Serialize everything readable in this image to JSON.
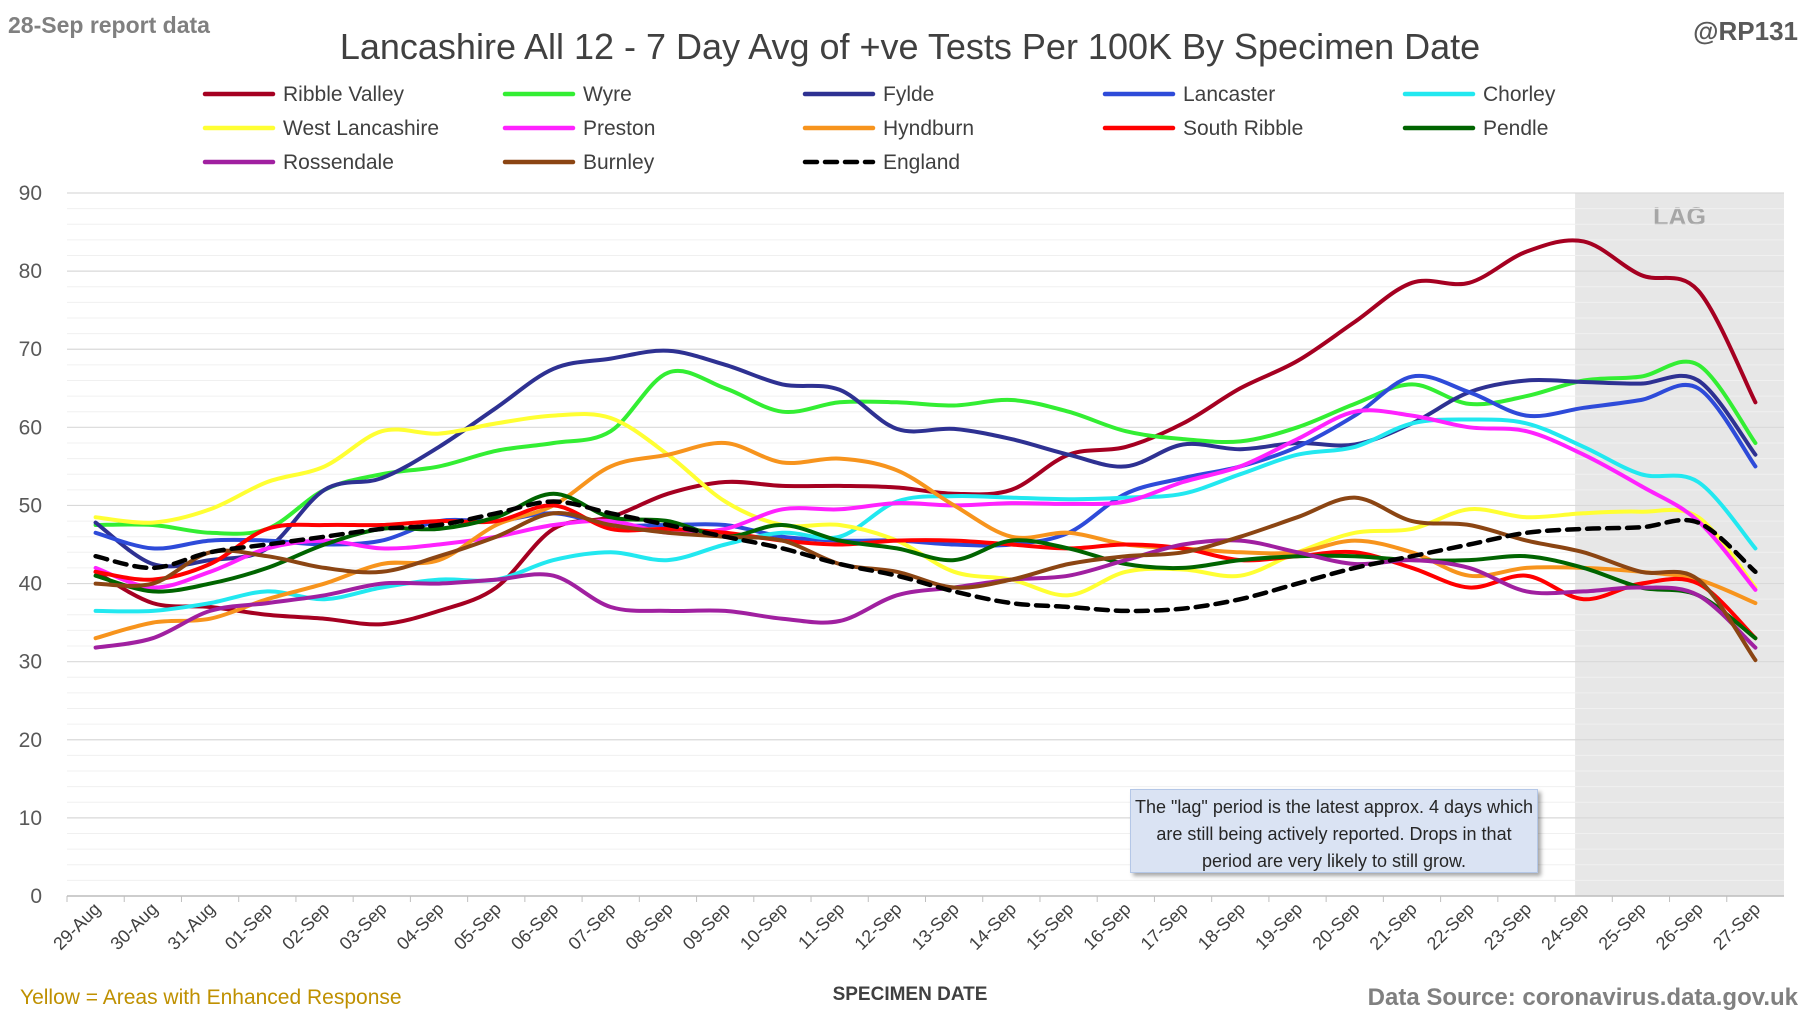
{
  "report_note": "28-Sep report data",
  "handle": "@RP131",
  "footer_left": "Yellow = Areas with Enhanced Response",
  "footer_right": "Data Source: coronavirus.data.gov.uk",
  "note_box": "The \"lag\" period is the latest approx. 4 days which are still being actively reported.  Drops in that period are very likely to still grow.",
  "chart_data": {
    "type": "line",
    "title": "Lancashire All 12 - 7 Day Avg of +ve Tests Per 100K By Specimen Date",
    "xlabel": "SPECIMEN DATE",
    "ylabel": "",
    "ylim": [
      0,
      90
    ],
    "yticks": [
      0,
      10,
      20,
      30,
      40,
      50,
      60,
      70,
      80,
      90
    ],
    "grid": true,
    "legend_position": "top",
    "lag_label": "LAG",
    "lag_start": "24-Sep",
    "lag_end": "27-Sep",
    "lag_color": "#e7e7e7",
    "categories": [
      "29-Aug",
      "30-Aug",
      "31-Aug",
      "01-Sep",
      "02-Sep",
      "03-Sep",
      "04-Sep",
      "05-Sep",
      "06-Sep",
      "07-Sep",
      "08-Sep",
      "09-Sep",
      "10-Sep",
      "11-Sep",
      "12-Sep",
      "13-Sep",
      "14-Sep",
      "15-Sep",
      "16-Sep",
      "17-Sep",
      "18-Sep",
      "19-Sep",
      "20-Sep",
      "21-Sep",
      "22-Sep",
      "23-Sep",
      "24-Sep",
      "25-Sep",
      "26-Sep",
      "27-Sep"
    ],
    "series": [
      {
        "name": "Ribble Valley",
        "color": "#a50021",
        "dashed": false,
        "values": [
          41.5,
          37.5,
          37.0,
          36.0,
          35.5,
          34.8,
          36.5,
          39.5,
          47.0,
          48.5,
          51.5,
          53.0,
          52.5,
          52.5,
          52.3,
          51.5,
          52.0,
          56.5,
          57.5,
          60.5,
          65.0,
          68.5,
          73.5,
          78.5,
          78.5,
          82.5,
          83.8,
          79.5,
          77.5,
          63.2
        ]
      },
      {
        "name": "Wyre",
        "color": "#33ee33",
        "dashed": false,
        "values": [
          47.5,
          47.5,
          46.5,
          47.0,
          52.0,
          54.0,
          55.0,
          57.0,
          58.0,
          59.5,
          67.0,
          65.0,
          62.0,
          63.2,
          63.2,
          62.8,
          63.5,
          62.0,
          59.5,
          58.5,
          58.2,
          60.0,
          63.0,
          65.5,
          63.0,
          64.0,
          66.0,
          66.5,
          68.0,
          58.0
        ]
      },
      {
        "name": "Fylde",
        "color": "#2e3192",
        "dashed": false,
        "values": [
          47.8,
          42.5,
          43.0,
          44.5,
          52.0,
          53.5,
          57.5,
          62.5,
          67.5,
          68.8,
          69.8,
          68.0,
          65.5,
          64.8,
          59.8,
          59.8,
          58.5,
          56.5,
          55.0,
          57.8,
          57.2,
          58.0,
          57.8,
          60.5,
          64.5,
          66.0,
          65.8,
          65.6,
          66.0,
          56.5
        ]
      },
      {
        "name": "Lancaster",
        "color": "#2e4bd9",
        "dashed": false,
        "values": [
          46.5,
          44.5,
          45.5,
          45.5,
          45.0,
          45.5,
          48.0,
          48.0,
          49.0,
          47.5,
          47.5,
          47.5,
          46.0,
          45.5,
          45.5,
          45.0,
          45.0,
          46.5,
          51.5,
          53.5,
          55.0,
          57.5,
          61.5,
          66.5,
          64.5,
          61.5,
          62.5,
          63.5,
          65.0,
          55.0
        ]
      },
      {
        "name": "Chorley",
        "color": "#22e8f0",
        "dashed": false,
        "values": [
          36.5,
          36.5,
          37.5,
          39.0,
          38.0,
          39.5,
          40.5,
          40.5,
          43.0,
          44.0,
          43.0,
          45.0,
          46.5,
          46.0,
          50.5,
          51.2,
          51.0,
          50.8,
          51.0,
          51.5,
          54.0,
          56.5,
          57.5,
          60.5,
          61.0,
          60.5,
          57.5,
          54.0,
          53.0,
          44.5
        ]
      },
      {
        "name": "West Lancashire",
        "color": "#ffff33",
        "dashed": false,
        "values": [
          48.5,
          47.8,
          49.5,
          53.0,
          55.0,
          59.5,
          59.2,
          60.5,
          61.5,
          61.2,
          56.5,
          50.5,
          47.5,
          47.5,
          45.5,
          41.5,
          40.5,
          38.5,
          41.5,
          41.8,
          41.0,
          44.0,
          46.5,
          47.0,
          49.5,
          48.5,
          49.0,
          49.2,
          48.5,
          39.5
        ]
      },
      {
        "name": "Preston",
        "color": "#ff22ff",
        "dashed": false,
        "values": [
          42.0,
          39.5,
          41.5,
          44.5,
          45.5,
          44.5,
          45.0,
          46.0,
          47.5,
          48.0,
          46.5,
          47.0,
          49.5,
          49.5,
          50.3,
          50.0,
          50.3,
          50.2,
          50.5,
          53.0,
          55.0,
          58.5,
          62.0,
          61.5,
          60.0,
          59.5,
          56.5,
          52.5,
          48.0,
          39.2
        ]
      },
      {
        "name": "Hyndburn",
        "color": "#f7941d",
        "dashed": false,
        "values": [
          33.0,
          35.0,
          35.5,
          38.0,
          40.0,
          42.5,
          43.0,
          47.5,
          50.0,
          55.0,
          56.5,
          58.0,
          55.5,
          56.0,
          54.5,
          50.0,
          46.0,
          46.5,
          45.0,
          44.5,
          44.0,
          44.0,
          45.5,
          44.0,
          41.0,
          42.0,
          42.0,
          41.5,
          40.5,
          37.5
        ]
      },
      {
        "name": "South Ribble",
        "color": "#ff0000",
        "dashed": false,
        "values": [
          41.5,
          40.5,
          42.5,
          47.0,
          47.5,
          47.5,
          48.0,
          48.0,
          50.0,
          47.0,
          47.0,
          46.5,
          45.5,
          45.0,
          45.5,
          45.5,
          45.0,
          44.5,
          45.0,
          44.5,
          43.0,
          43.5,
          44.0,
          42.0,
          39.5,
          41.0,
          38.0,
          40.0,
          40.0,
          33.0
        ]
      },
      {
        "name": "Pendle",
        "color": "#006400",
        "dashed": false,
        "values": [
          41.0,
          39.0,
          40.0,
          42.0,
          45.0,
          47.0,
          47.0,
          48.5,
          51.5,
          48.5,
          48.0,
          46.0,
          47.5,
          45.5,
          44.5,
          43.0,
          45.5,
          44.5,
          42.5,
          42.0,
          43.0,
          43.5,
          43.5,
          43.0,
          43.0,
          43.5,
          42.0,
          39.5,
          38.5,
          33.0
        ]
      },
      {
        "name": "Rossendale",
        "color": "#a020a0",
        "dashed": false,
        "values": [
          31.8,
          33.0,
          36.5,
          37.5,
          38.5,
          40.0,
          40.0,
          40.5,
          41.0,
          37.0,
          36.5,
          36.5,
          35.5,
          35.2,
          38.5,
          39.5,
          40.5,
          41.0,
          43.0,
          45.0,
          45.5,
          44.0,
          42.5,
          43.0,
          42.0,
          39.0,
          39.0,
          39.5,
          38.5,
          31.8
        ]
      },
      {
        "name": "Burnley",
        "color": "#8b4513",
        "dashed": false,
        "values": [
          40.0,
          40.0,
          44.0,
          43.5,
          42.0,
          41.5,
          43.5,
          46.0,
          49.0,
          47.5,
          46.5,
          46.0,
          45.5,
          42.5,
          41.5,
          39.5,
          40.5,
          42.5,
          43.5,
          44.0,
          46.0,
          48.5,
          51.0,
          48.0,
          47.5,
          45.5,
          44.0,
          41.5,
          40.5,
          30.2
        ]
      },
      {
        "name": "England",
        "color": "#000000",
        "dashed": true,
        "values": [
          43.5,
          42.0,
          44.0,
          45.0,
          46.0,
          47.0,
          47.5,
          49.0,
          50.5,
          49.0,
          47.5,
          46.0,
          44.5,
          42.5,
          41.0,
          39.0,
          37.5,
          37.0,
          36.5,
          36.8,
          38.0,
          40.0,
          42.0,
          43.5,
          45.0,
          46.5,
          47.0,
          47.2,
          47.8,
          41.5
        ]
      }
    ]
  }
}
